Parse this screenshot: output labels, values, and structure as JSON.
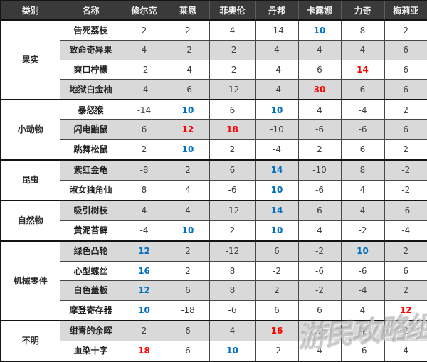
{
  "chart_data": {
    "type": "table",
    "columns": [
      "类别",
      "名称",
      "修尔克",
      "莱恩",
      "菲奥伦",
      "丹邦",
      "卡露娜",
      "力奇",
      "梅莉亚"
    ],
    "highlight_colors": {
      "blue": "#0070C0",
      "red": "#FF0000"
    },
    "groups": [
      {
        "category": "果实",
        "items": [
          {
            "name": "告死荔枝",
            "values": [
              2,
              2,
              4,
              -14,
              10,
              8,
              2
            ],
            "value_colors": [
              "",
              "",
              "",
              "",
              "blue",
              "",
              ""
            ]
          },
          {
            "name": "致命奇异果",
            "values": [
              4,
              -2,
              -2,
              4,
              4,
              4,
              6
            ],
            "value_colors": [
              "",
              "",
              "",
              "",
              "",
              "",
              ""
            ]
          },
          {
            "name": "爽口柠檬",
            "values": [
              -2,
              -4,
              -2,
              -4,
              6,
              14,
              6
            ],
            "value_colors": [
              "",
              "",
              "",
              "",
              "",
              "red",
              ""
            ]
          },
          {
            "name": "地狱白金柚",
            "values": [
              -4,
              -6,
              -12,
              -4,
              30,
              6,
              6
            ],
            "value_colors": [
              "",
              "",
              "",
              "",
              "red",
              "",
              ""
            ]
          }
        ]
      },
      {
        "category": "小动物",
        "items": [
          {
            "name": "暴怒猴",
            "values": [
              -14,
              10,
              6,
              10,
              4,
              -4,
              2
            ],
            "value_colors": [
              "",
              "blue",
              "",
              "blue",
              "",
              "",
              ""
            ]
          },
          {
            "name": "闪电鼬鼠",
            "values": [
              6,
              12,
              18,
              -10,
              -6,
              -6,
              6
            ],
            "value_colors": [
              "",
              "red",
              "red",
              "",
              "",
              "",
              ""
            ]
          },
          {
            "name": "跳舞松鼠",
            "values": [
              2,
              10,
              2,
              -4,
              2,
              6,
              2
            ],
            "value_colors": [
              "",
              "blue",
              "",
              "",
              "",
              "",
              ""
            ]
          }
        ]
      },
      {
        "category": "昆虫",
        "items": [
          {
            "name": "紫红金龟",
            "values": [
              -8,
              2,
              6,
              14,
              -10,
              8,
              -2
            ],
            "value_colors": [
              "",
              "",
              "",
              "blue",
              "",
              "",
              ""
            ]
          },
          {
            "name": "淑女独角仙",
            "values": [
              8,
              4,
              -6,
              10,
              -6,
              4,
              -2
            ],
            "value_colors": [
              "",
              "",
              "",
              "blue",
              "",
              "",
              ""
            ]
          }
        ]
      },
      {
        "category": "自然物",
        "items": [
          {
            "name": "吸引树枝",
            "values": [
              4,
              4,
              -12,
              14,
              6,
              4,
              -6
            ],
            "value_colors": [
              "",
              "",
              "",
              "blue",
              "",
              "",
              ""
            ]
          },
          {
            "name": "黄泥苔藓",
            "values": [
              -4,
              10,
              2,
              10,
              4,
              -2,
              -4
            ],
            "value_colors": [
              "",
              "blue",
              "",
              "blue",
              "",
              "",
              ""
            ]
          }
        ]
      },
      {
        "category": "机械零件",
        "items": [
          {
            "name": "绿色凸轮",
            "values": [
              12,
              2,
              -12,
              6,
              -2,
              10,
              2
            ],
            "value_colors": [
              "blue",
              "",
              "",
              "",
              "",
              "blue",
              ""
            ]
          },
          {
            "name": "心型螺丝",
            "values": [
              16,
              2,
              8,
              -2,
              -6,
              -6,
              6
            ],
            "value_colors": [
              "blue",
              "",
              "",
              "",
              "",
              "",
              ""
            ]
          },
          {
            "name": "白色盖板",
            "values": [
              12,
              6,
              8,
              2,
              -2,
              -4,
              2
            ],
            "value_colors": [
              "blue",
              "",
              "",
              "",
              "",
              "",
              ""
            ]
          },
          {
            "name": "摩登寄存器",
            "values": [
              10,
              -18,
              -6,
              6,
              6,
              4,
              12
            ],
            "value_colors": [
              "blue",
              "",
              "",
              "",
              "",
              "",
              "red"
            ]
          }
        ]
      },
      {
        "category": "不明",
        "items": [
          {
            "name": "绀青的余晖",
            "values": [
              2,
              6,
              4,
              16,
              -2,
              4,
              2
            ],
            "value_colors": [
              "",
              "",
              "",
              "red",
              "",
              "",
              ""
            ]
          },
          {
            "name": "血染十字",
            "values": [
              18,
              6,
              10,
              -2,
              4,
              -6,
              4
            ],
            "value_colors": [
              "red",
              "",
              "blue",
              "",
              "",
              "",
              ""
            ]
          }
        ]
      }
    ]
  },
  "watermark": {
    "text": "游民攻略组"
  }
}
